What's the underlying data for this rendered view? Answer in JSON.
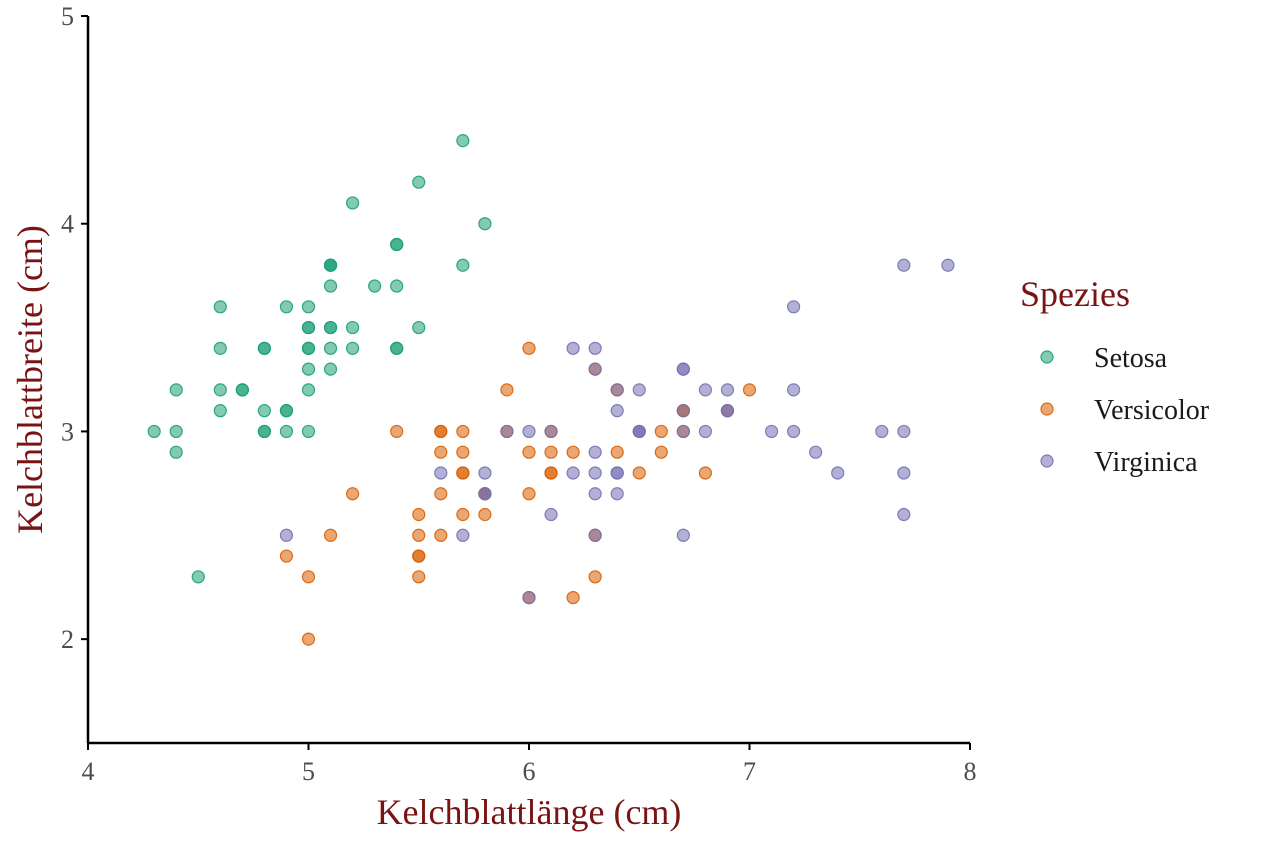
{
  "chart_data": {
    "type": "scatter",
    "xlabel": "Kelchblattlänge (cm)",
    "ylabel": "Kelchblattbreite (cm)",
    "xlim": [
      4,
      8
    ],
    "ylim": [
      1.5,
      5
    ],
    "xticks": [
      4,
      5,
      6,
      7,
      8
    ],
    "yticks": [
      2,
      3,
      4,
      5
    ],
    "legend": {
      "title": "Spezies",
      "position": "right"
    },
    "grid": false,
    "series": [
      {
        "name": "Setosa",
        "color": "#1b9e77",
        "points": [
          [
            5.1,
            3.5
          ],
          [
            4.9,
            3.0
          ],
          [
            4.7,
            3.2
          ],
          [
            4.6,
            3.1
          ],
          [
            5.0,
            3.6
          ],
          [
            5.4,
            3.9
          ],
          [
            4.6,
            3.4
          ],
          [
            5.0,
            3.4
          ],
          [
            4.4,
            2.9
          ],
          [
            4.9,
            3.1
          ],
          [
            5.4,
            3.7
          ],
          [
            4.8,
            3.4
          ],
          [
            4.8,
            3.0
          ],
          [
            4.3,
            3.0
          ],
          [
            5.8,
            4.0
          ],
          [
            5.7,
            4.4
          ],
          [
            5.4,
            3.9
          ],
          [
            5.1,
            3.5
          ],
          [
            5.7,
            3.8
          ],
          [
            5.1,
            3.8
          ],
          [
            5.4,
            3.4
          ],
          [
            5.1,
            3.7
          ],
          [
            4.6,
            3.6
          ],
          [
            5.1,
            3.3
          ],
          [
            4.8,
            3.4
          ],
          [
            5.0,
            3.0
          ],
          [
            5.0,
            3.4
          ],
          [
            5.2,
            3.5
          ],
          [
            5.2,
            3.4
          ],
          [
            4.7,
            3.2
          ],
          [
            4.8,
            3.1
          ],
          [
            5.4,
            3.4
          ],
          [
            5.2,
            4.1
          ],
          [
            5.5,
            4.2
          ],
          [
            4.9,
            3.1
          ],
          [
            5.0,
            3.2
          ],
          [
            5.5,
            3.5
          ],
          [
            4.9,
            3.6
          ],
          [
            4.4,
            3.0
          ],
          [
            5.1,
            3.4
          ],
          [
            5.0,
            3.5
          ],
          [
            4.5,
            2.3
          ],
          [
            4.4,
            3.2
          ],
          [
            5.0,
            3.5
          ],
          [
            5.1,
            3.8
          ],
          [
            4.8,
            3.0
          ],
          [
            5.1,
            3.8
          ],
          [
            4.6,
            3.2
          ],
          [
            5.3,
            3.7
          ],
          [
            5.0,
            3.3
          ]
        ]
      },
      {
        "name": "Versicolor",
        "color": "#d95f02",
        "points": [
          [
            7.0,
            3.2
          ],
          [
            6.4,
            3.2
          ],
          [
            6.9,
            3.1
          ],
          [
            5.5,
            2.3
          ],
          [
            6.5,
            2.8
          ],
          [
            5.7,
            2.8
          ],
          [
            6.3,
            3.3
          ],
          [
            4.9,
            2.4
          ],
          [
            6.6,
            2.9
          ],
          [
            5.2,
            2.7
          ],
          [
            5.0,
            2.0
          ],
          [
            5.9,
            3.0
          ],
          [
            6.0,
            2.2
          ],
          [
            6.1,
            2.9
          ],
          [
            5.6,
            2.9
          ],
          [
            6.7,
            3.1
          ],
          [
            5.6,
            3.0
          ],
          [
            5.8,
            2.7
          ],
          [
            6.2,
            2.2
          ],
          [
            5.6,
            2.5
          ],
          [
            5.9,
            3.2
          ],
          [
            6.1,
            2.8
          ],
          [
            6.3,
            2.5
          ],
          [
            6.1,
            2.8
          ],
          [
            6.4,
            2.9
          ],
          [
            6.6,
            3.0
          ],
          [
            6.8,
            2.8
          ],
          [
            6.7,
            3.0
          ],
          [
            6.0,
            2.9
          ],
          [
            5.7,
            2.6
          ],
          [
            5.5,
            2.4
          ],
          [
            5.5,
            2.4
          ],
          [
            5.8,
            2.7
          ],
          [
            6.0,
            2.7
          ],
          [
            5.4,
            3.0
          ],
          [
            6.0,
            3.4
          ],
          [
            6.7,
            3.1
          ],
          [
            6.3,
            2.3
          ],
          [
            5.6,
            3.0
          ],
          [
            5.5,
            2.5
          ],
          [
            5.5,
            2.6
          ],
          [
            6.1,
            3.0
          ],
          [
            5.8,
            2.6
          ],
          [
            5.0,
            2.3
          ],
          [
            5.6,
            2.7
          ],
          [
            5.7,
            3.0
          ],
          [
            5.7,
            2.9
          ],
          [
            6.2,
            2.9
          ],
          [
            5.1,
            2.5
          ],
          [
            5.7,
            2.8
          ]
        ]
      },
      {
        "name": "Virginica",
        "color": "#7570b3",
        "points": [
          [
            6.3,
            3.3
          ],
          [
            5.8,
            2.7
          ],
          [
            7.1,
            3.0
          ],
          [
            6.3,
            2.9
          ],
          [
            6.5,
            3.0
          ],
          [
            7.6,
            3.0
          ],
          [
            4.9,
            2.5
          ],
          [
            7.3,
            2.9
          ],
          [
            6.7,
            2.5
          ],
          [
            7.2,
            3.6
          ],
          [
            6.5,
            3.2
          ],
          [
            6.4,
            2.7
          ],
          [
            6.8,
            3.0
          ],
          [
            5.7,
            2.5
          ],
          [
            5.8,
            2.8
          ],
          [
            6.4,
            3.2
          ],
          [
            6.5,
            3.0
          ],
          [
            7.7,
            3.8
          ],
          [
            7.7,
            2.6
          ],
          [
            6.0,
            2.2
          ],
          [
            6.9,
            3.2
          ],
          [
            5.6,
            2.8
          ],
          [
            7.7,
            2.8
          ],
          [
            6.3,
            2.7
          ],
          [
            6.7,
            3.3
          ],
          [
            7.2,
            3.2
          ],
          [
            6.2,
            2.8
          ],
          [
            6.1,
            3.0
          ],
          [
            6.4,
            2.8
          ],
          [
            7.2,
            3.0
          ],
          [
            7.4,
            2.8
          ],
          [
            7.9,
            3.8
          ],
          [
            6.4,
            2.8
          ],
          [
            6.3,
            2.8
          ],
          [
            6.1,
            2.6
          ],
          [
            7.7,
            3.0
          ],
          [
            6.3,
            3.4
          ],
          [
            6.4,
            3.1
          ],
          [
            6.0,
            3.0
          ],
          [
            6.9,
            3.1
          ],
          [
            6.7,
            3.1
          ],
          [
            6.9,
            3.1
          ],
          [
            5.8,
            2.7
          ],
          [
            6.8,
            3.2
          ],
          [
            6.7,
            3.3
          ],
          [
            6.7,
            3.0
          ],
          [
            6.3,
            2.5
          ],
          [
            6.5,
            3.0
          ],
          [
            6.2,
            3.4
          ],
          [
            5.9,
            3.0
          ]
        ]
      }
    ]
  }
}
